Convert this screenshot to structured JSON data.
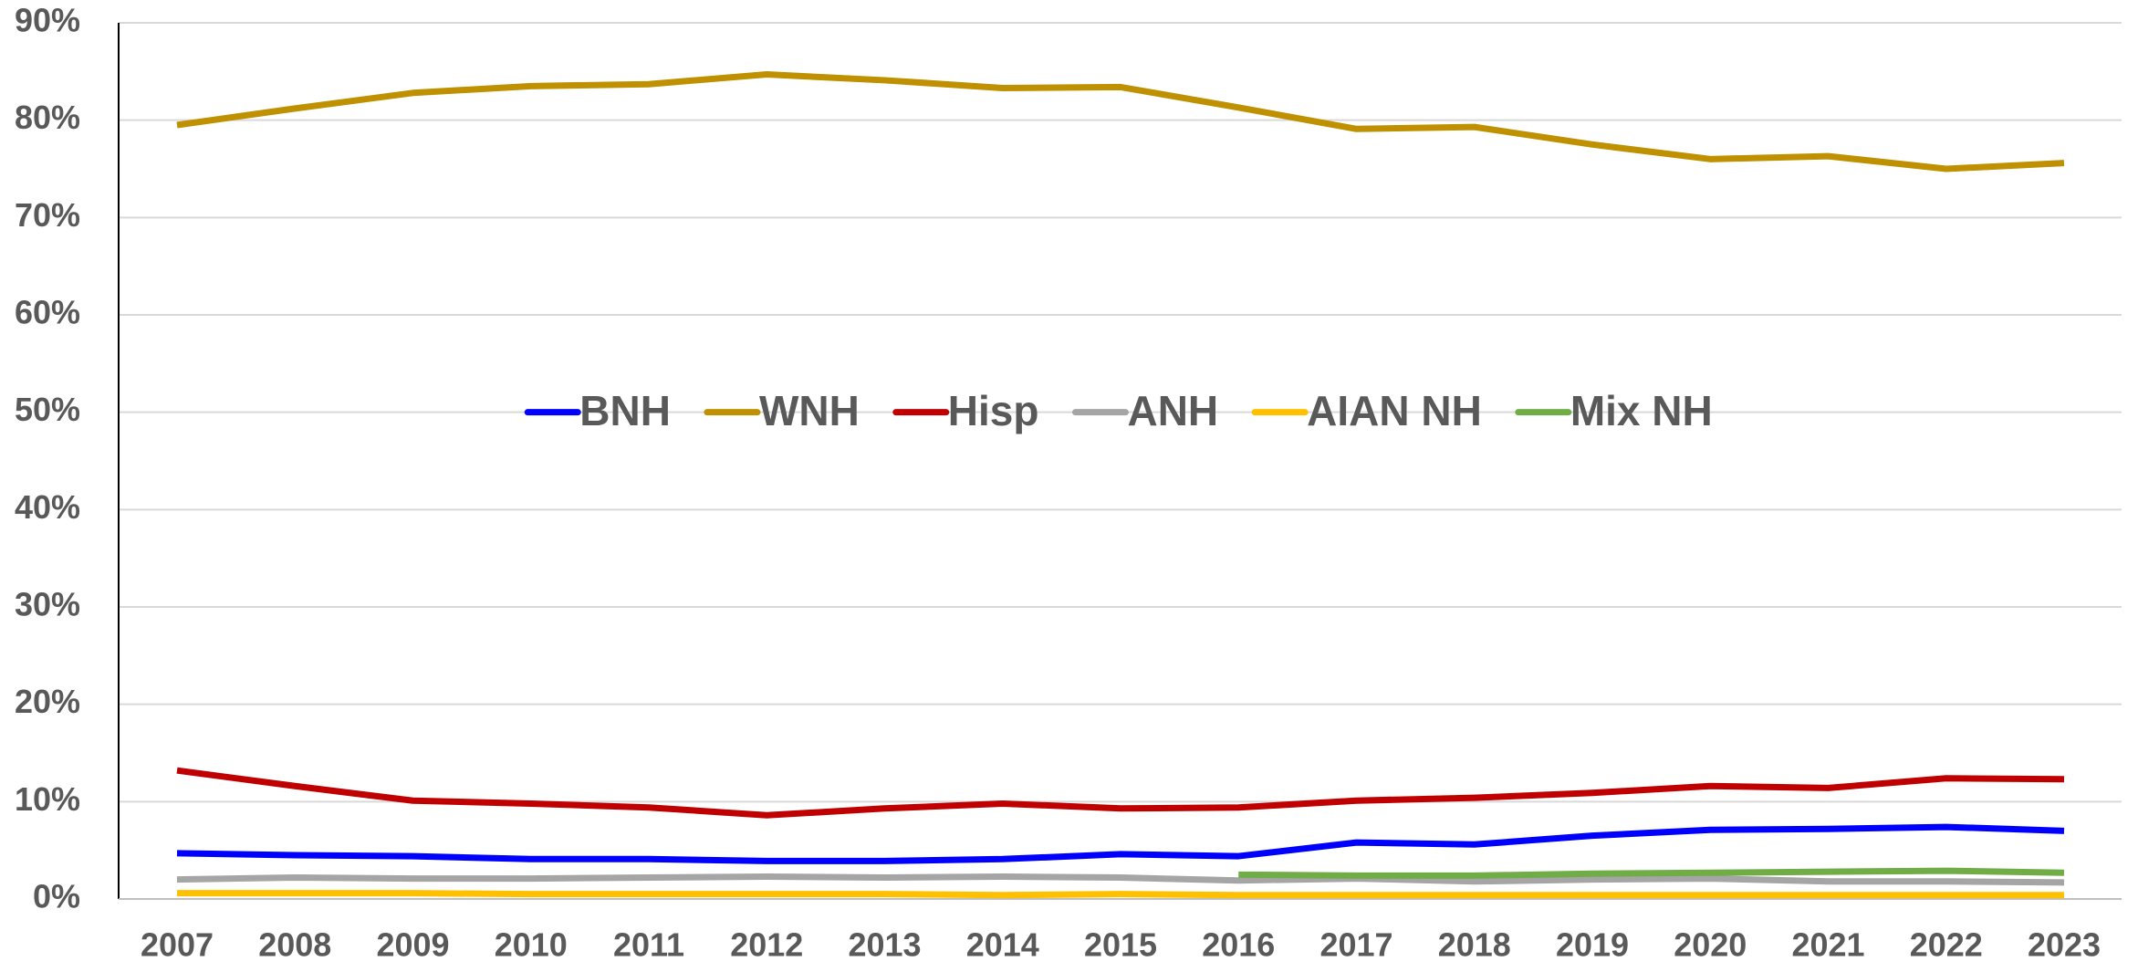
{
  "chart_data": {
    "type": "line",
    "categories": [
      "2007",
      "2008",
      "2009",
      "2010",
      "2011",
      "2012",
      "2013",
      "2014",
      "2015",
      "2016",
      "2017",
      "2018",
      "2019",
      "2020",
      "2021",
      "2022",
      "2023"
    ],
    "series": [
      {
        "name": "BNH",
        "color": "#0000ff",
        "values": [
          4.7,
          4.5,
          4.4,
          4.1,
          4.1,
          3.9,
          3.9,
          4.1,
          4.6,
          4.4,
          5.8,
          5.6,
          6.5,
          7.1,
          7.2,
          7.4,
          7.0
        ]
      },
      {
        "name": "WNH",
        "color": "#bf9000",
        "values": [
          79.5,
          81.2,
          82.8,
          83.5,
          83.7,
          84.7,
          84.1,
          83.3,
          83.4,
          81.3,
          79.1,
          79.3,
          77.5,
          76.0,
          76.3,
          75.0,
          75.6
        ]
      },
      {
        "name": "Hisp",
        "color": "#c00000",
        "values": [
          13.2,
          11.6,
          10.1,
          9.8,
          9.4,
          8.6,
          9.3,
          9.8,
          9.3,
          9.4,
          10.1,
          10.4,
          10.9,
          11.6,
          11.4,
          12.4,
          12.3
        ]
      },
      {
        "name": "ANH",
        "color": "#a5a5a5",
        "values": [
          2.0,
          2.2,
          2.1,
          2.1,
          2.2,
          2.3,
          2.2,
          2.3,
          2.2,
          1.9,
          2.1,
          1.8,
          2.0,
          2.1,
          1.8,
          1.8,
          1.7
        ]
      },
      {
        "name": "AIAN NH",
        "color": "#ffc000",
        "values": [
          0.6,
          0.6,
          0.6,
          0.5,
          0.5,
          0.5,
          0.5,
          0.4,
          0.5,
          0.4,
          0.4,
          0.4,
          0.4,
          0.4,
          0.4,
          0.4,
          0.4
        ]
      },
      {
        "name": "Mix NH",
        "color": "#70ad47",
        "values": [
          null,
          null,
          null,
          null,
          null,
          null,
          null,
          null,
          null,
          2.5,
          2.4,
          2.4,
          2.6,
          2.7,
          2.8,
          2.9,
          2.7
        ]
      }
    ],
    "ylim": [
      0,
      90
    ],
    "yticks": [
      {
        "value": 0,
        "label": "0%"
      },
      {
        "value": 10,
        "label": "10%"
      },
      {
        "value": 20,
        "label": "20%"
      },
      {
        "value": 30,
        "label": "30%"
      },
      {
        "value": 40,
        "label": "40%"
      },
      {
        "value": 50,
        "label": "50%"
      },
      {
        "value": 60,
        "label": "60%"
      },
      {
        "value": 70,
        "label": "70%"
      },
      {
        "value": 80,
        "label": "80%"
      },
      {
        "value": 90,
        "label": "90%"
      }
    ],
    "grid": true,
    "legend": "center"
  }
}
